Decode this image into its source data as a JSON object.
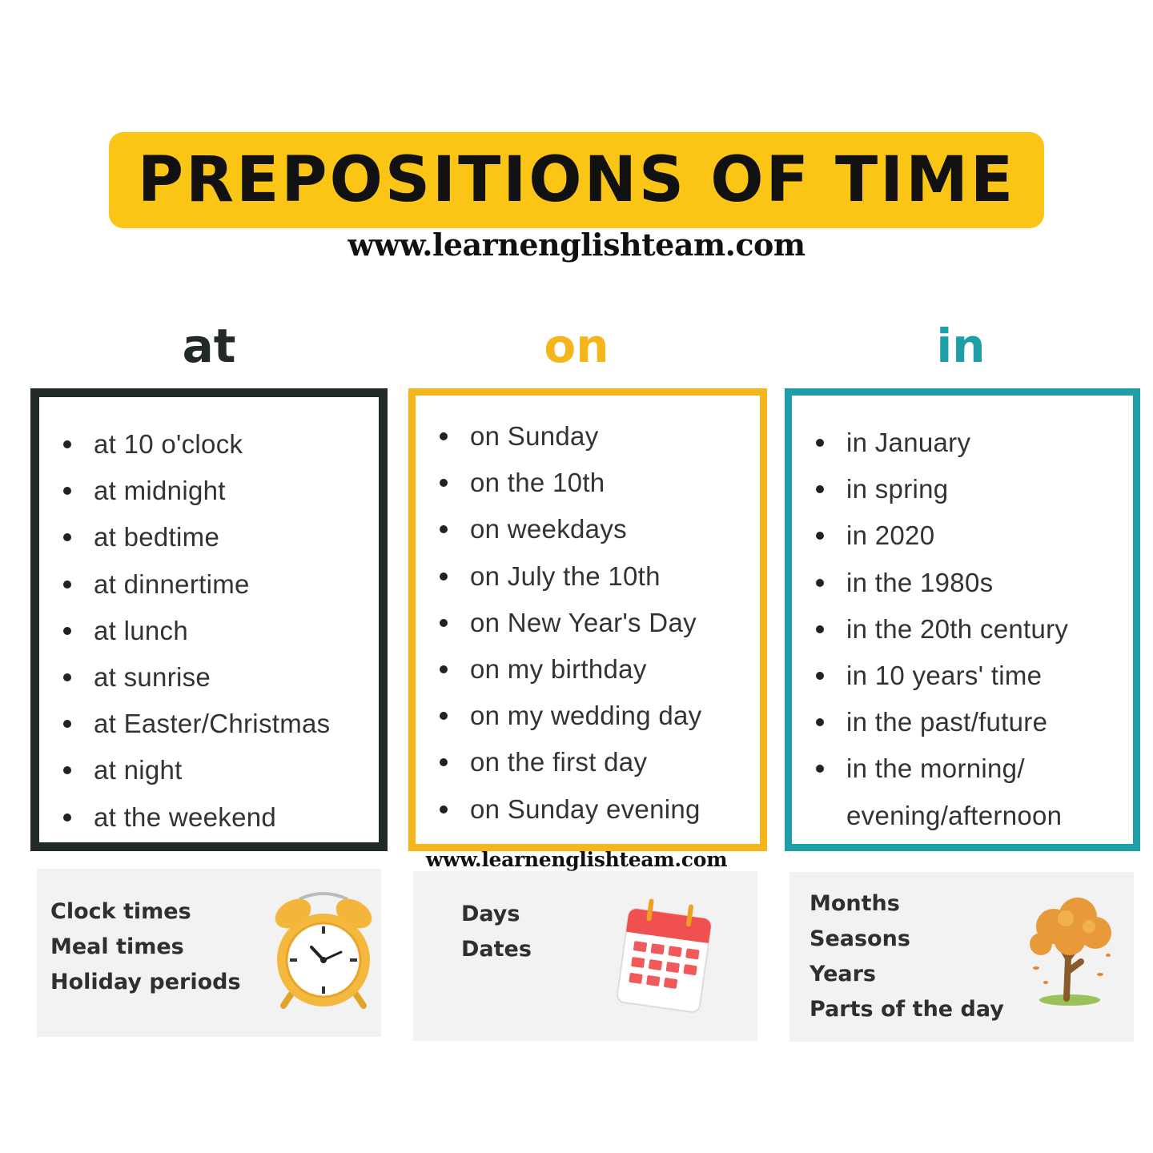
{
  "header": {
    "title": "PREPOSITIONS OF TIME",
    "url": "www.learnenglishteam.com"
  },
  "colors": {
    "banner": "#fbc516",
    "at": "#222a28",
    "on": "#f4b61a",
    "in": "#1e9ea7"
  },
  "columns": [
    {
      "heading": "at",
      "items": [
        "at 10 o'clock",
        "at midnight",
        "at bedtime",
        "at dinnertime",
        "at lunch",
        "at sunrise",
        "at Easter/Christmas",
        "at night",
        "at the weekend"
      ],
      "categories": [
        "Clock times",
        "Meal times",
        "Holiday periods"
      ],
      "icon": "alarm-clock-icon"
    },
    {
      "heading": "on",
      "items": [
        "on Sunday",
        "on the 10th",
        "on weekdays",
        "on July the 10th",
        "on New Year's Day",
        "on my birthday",
        "on my wedding day",
        "on the first day",
        "on Sunday evening"
      ],
      "categories": [
        "Days",
        "Dates"
      ],
      "icon": "calendar-icon"
    },
    {
      "heading": "in",
      "items": [
        "in January",
        "in spring",
        "in 2020",
        "in the 1980s",
        "in the 20th century",
        "in 10 years' time",
        "in the past/future",
        "in the morning/",
        "evening/afternoon"
      ],
      "categories": [
        "Months",
        "Seasons",
        "Years",
        "Parts of the day"
      ],
      "icon": "autumn-tree-icon"
    }
  ],
  "footer_url": "www.learnenglishteam.com"
}
